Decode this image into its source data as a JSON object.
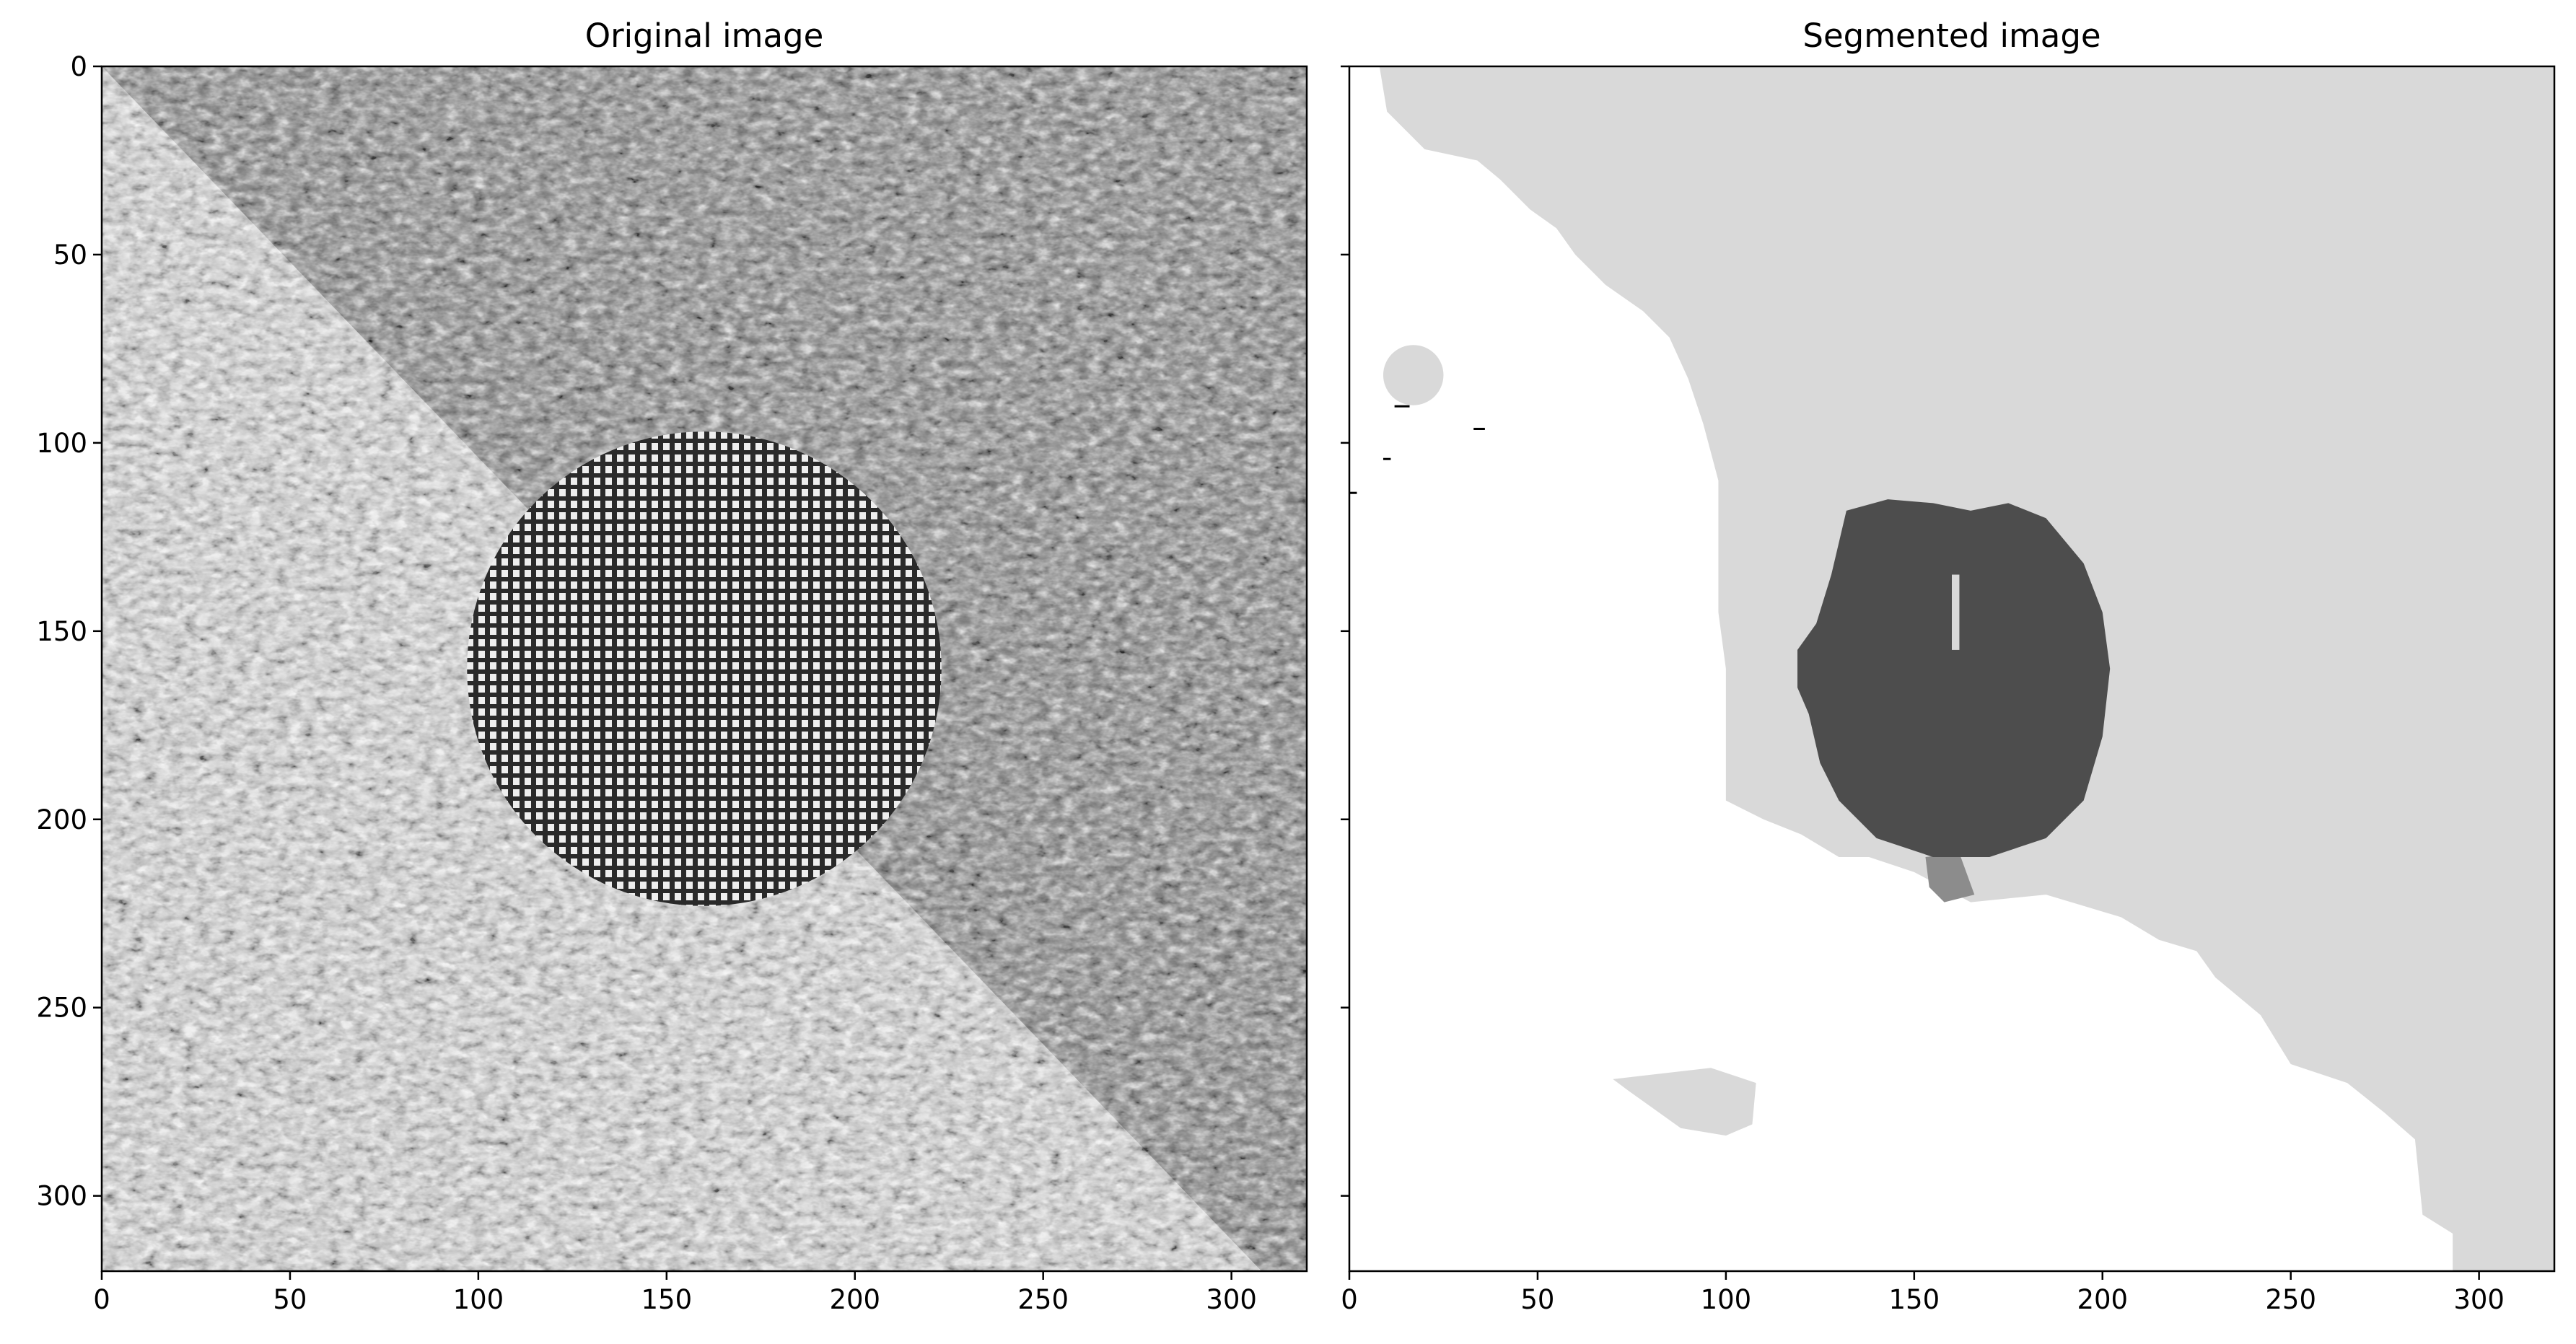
{
  "chart_data": [
    {
      "type": "heatmap",
      "title": "Original image",
      "xlabel": "",
      "ylabel": "",
      "xlim": [
        0,
        320
      ],
      "ylim": [
        320,
        0
      ],
      "xticks": [
        0,
        50,
        100,
        150,
        200,
        250,
        300
      ],
      "yticks": [
        0,
        50,
        100,
        150,
        200,
        250,
        300
      ],
      "colormap": "gray",
      "content": "grayscale texture mosaic"
    },
    {
      "type": "heatmap",
      "title": "Segmented image",
      "xlabel": "",
      "ylabel": "",
      "xlim": [
        0,
        320
      ],
      "ylim": [
        320,
        0
      ],
      "xticks": [
        0,
        50,
        100,
        150,
        200,
        250,
        300
      ],
      "yticks": [
        0,
        50,
        100,
        150,
        200,
        250,
        300
      ],
      "ytick_labels_shown": false,
      "colormap": "gray",
      "segment_colors": [
        "#ffffff",
        "#d9d9d9",
        "#4d4d4d",
        "#8c8c8c",
        "#000000"
      ]
    }
  ]
}
